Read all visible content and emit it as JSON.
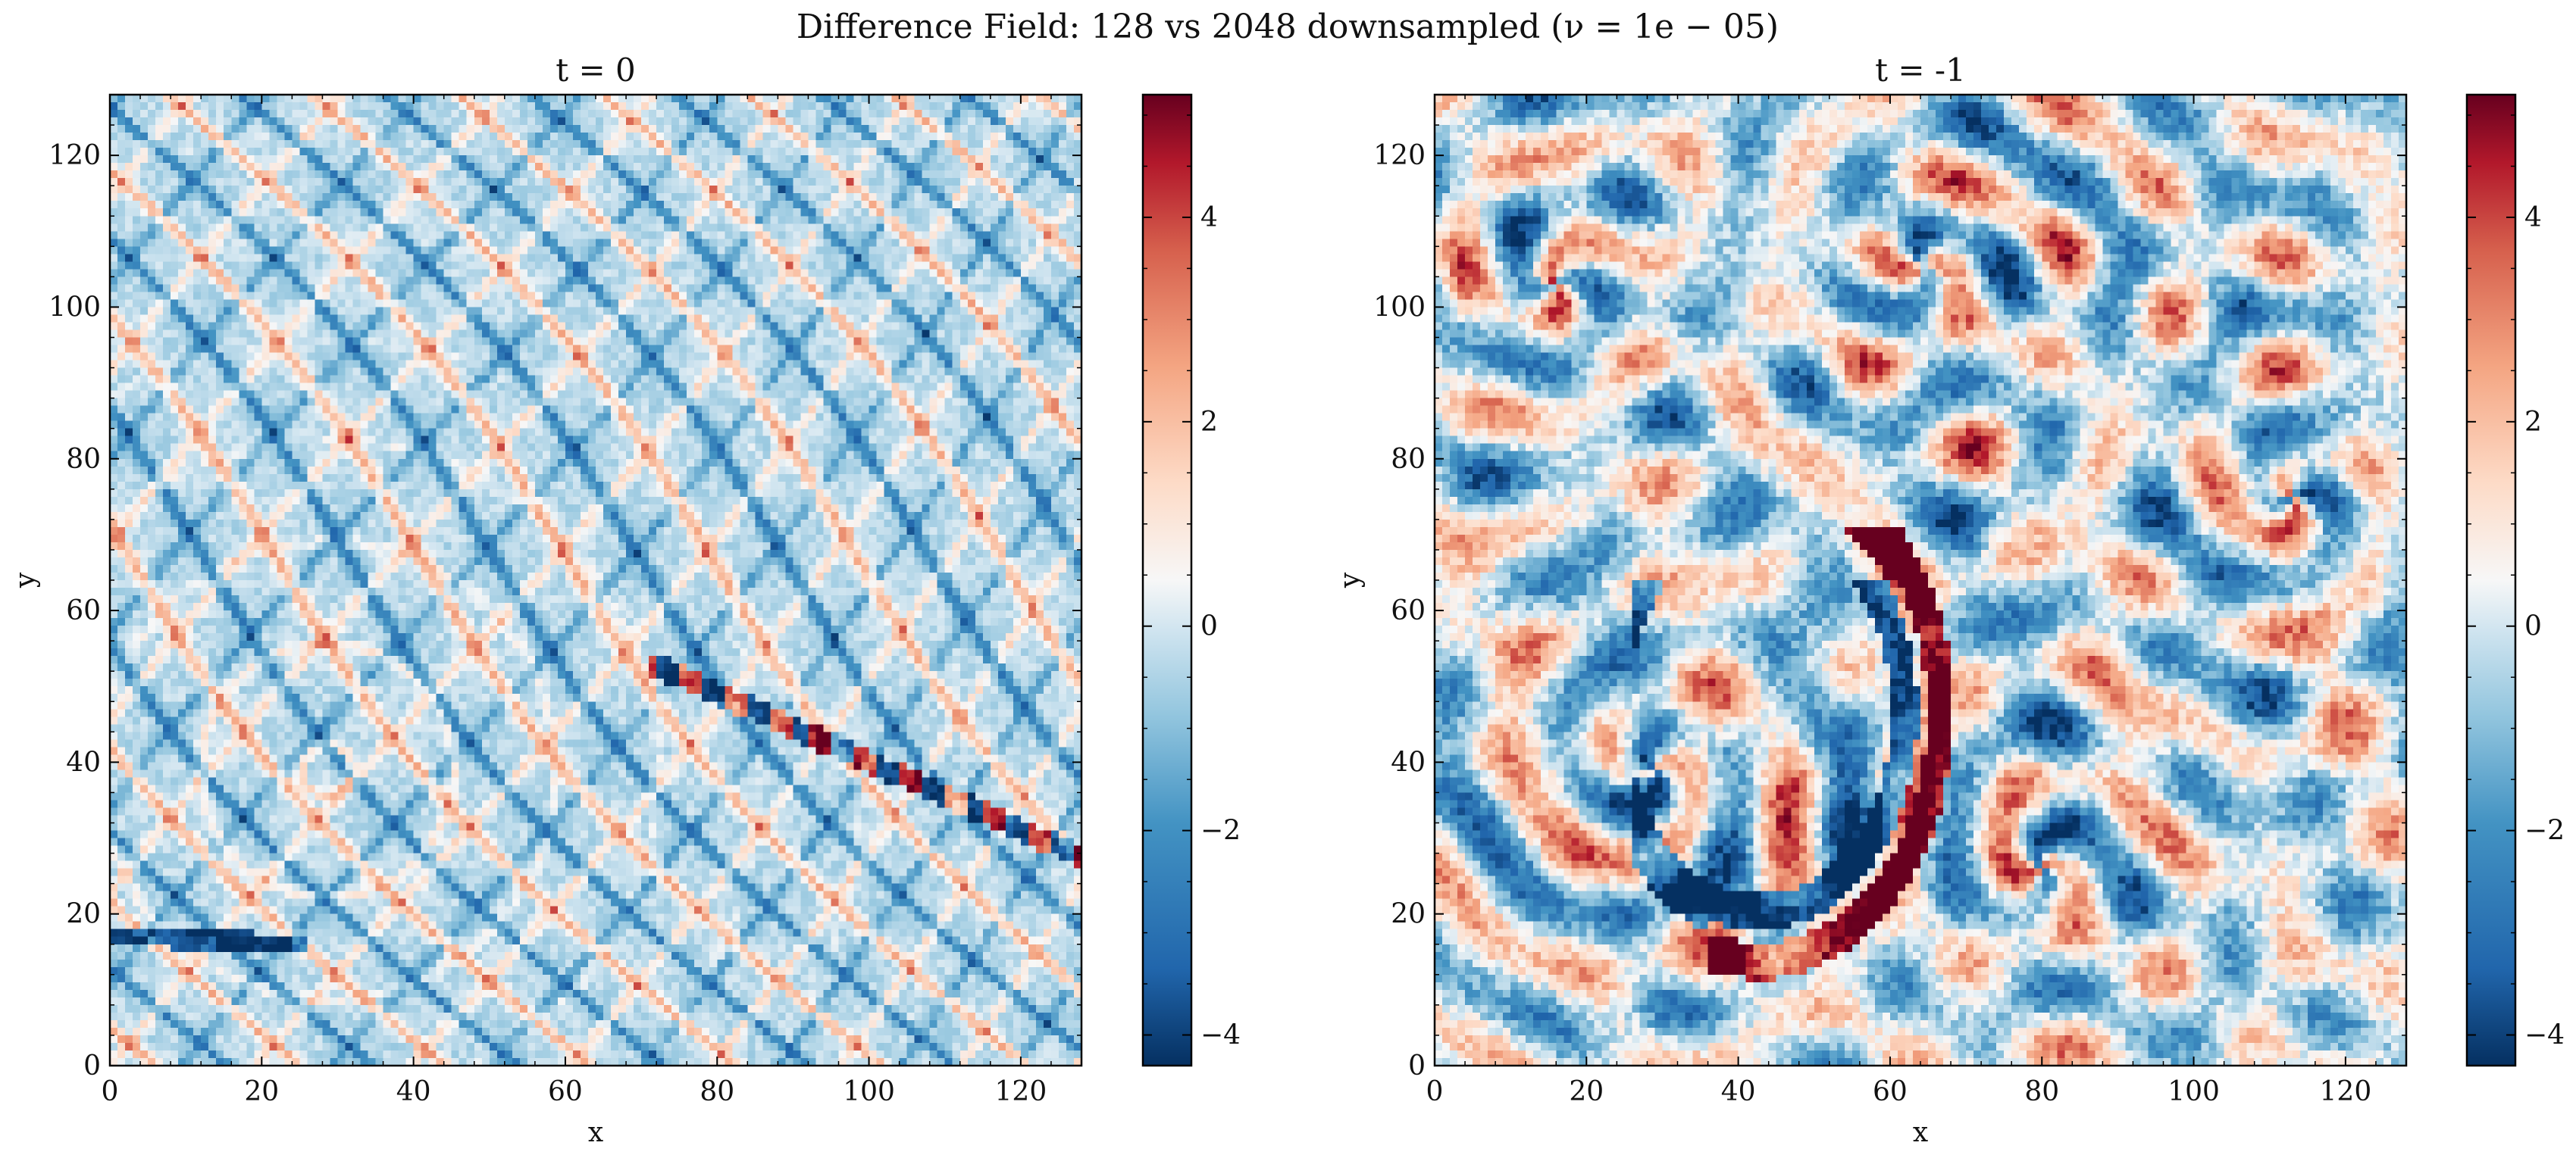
{
  "figure": {
    "title": "Difference Field: 128 vs 2048 downsampled ($\\nu = 1e-05$)",
    "title_display": "Difference Field: 128 vs 2048 downsampled (ν = 1e − 05)"
  },
  "chart_data": [
    {
      "type": "heatmap",
      "title": "t = 0",
      "xlabel": "x",
      "ylabel": "y",
      "xlim": [
        0,
        128
      ],
      "ylim": [
        0,
        128
      ],
      "grid": false,
      "xticks": [
        0,
        20,
        40,
        60,
        80,
        100,
        120
      ],
      "yticks": [
        0,
        20,
        40,
        60,
        80,
        100,
        120
      ],
      "colormap": "RdBu_r",
      "colorbar": {
        "range": [
          -4.3,
          5.2
        ],
        "ticks": [
          -4,
          -2,
          0,
          2,
          4
        ],
        "tick_labels": [
          "−4",
          "−2",
          "0",
          "2",
          "4"
        ]
      },
      "grid_size": [
        128,
        128
      ],
      "description_of_values": "mostly near zero with thin filament-like streaks of ±2 to ±5"
    },
    {
      "type": "heatmap",
      "title": "t = -1",
      "xlabel": "x",
      "ylabel": "y",
      "xlim": [
        0,
        128
      ],
      "ylim": [
        0,
        128
      ],
      "grid": false,
      "xticks": [
        0,
        20,
        40,
        60,
        80,
        100,
        120
      ],
      "yticks": [
        0,
        20,
        40,
        60,
        80,
        100,
        120
      ],
      "colormap": "RdBu_r",
      "colorbar": {
        "range": [
          -4.3,
          5.2
        ],
        "ticks": [
          -4,
          -2,
          0,
          2,
          4
        ],
        "tick_labels": [
          "−4",
          "−2",
          "0",
          "2",
          "4"
        ]
      },
      "grid_size": [
        128,
        128
      ],
      "description_of_values": "strong swirling vortex filaments with values between −4.3 and 5.2"
    }
  ],
  "colors": {
    "cmap_low": "#053061",
    "cmap_mid": "#f7f7f7",
    "cmap_high": "#67001f"
  }
}
